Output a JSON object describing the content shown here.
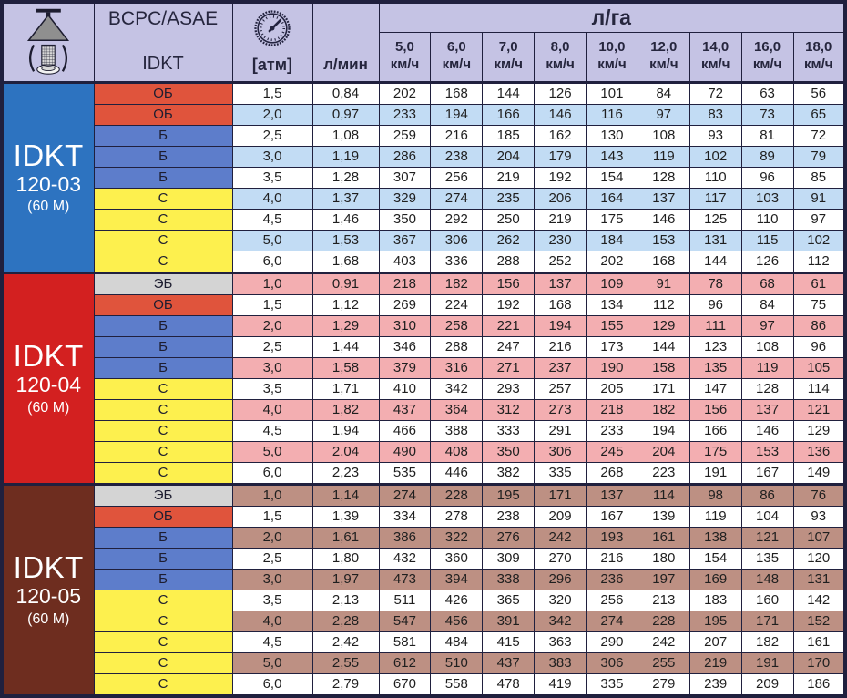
{
  "header": {
    "standard": "BCPC/ASAE",
    "series": "IDKT",
    "pressure_unit": "[атм]",
    "flow_unit": "л/мин",
    "rate_unit": "л/га",
    "speed_unit": "км/ч",
    "speeds": [
      "5,0",
      "6,0",
      "7,0",
      "8,0",
      "10,0",
      "12,0",
      "14,0",
      "16,0",
      "18,0"
    ]
  },
  "colors": {
    "header_bg": "#c5c3e4",
    "grid": "#20203e",
    "text": "#1f1f1f",
    "class_colors": {
      "ЭБ": "#d4d4d4",
      "ОБ": "#e0543c",
      "Б": "#5d7dcb",
      "С": "#fdf04e"
    }
  },
  "sections": [
    {
      "model": "IDKT",
      "code": "120-03",
      "size": "(60 M)",
      "color": "#2d73c0",
      "band": "#c2dcf4",
      "shade_offset": 1,
      "rows": [
        {
          "cls": "ОБ",
          "atm": "1,5",
          "lmin": "0,84",
          "vals": [
            "202",
            "168",
            "144",
            "126",
            "101",
            "84",
            "72",
            "63",
            "56"
          ]
        },
        {
          "cls": "ОБ",
          "atm": "2,0",
          "lmin": "0,97",
          "vals": [
            "233",
            "194",
            "166",
            "146",
            "116",
            "97",
            "83",
            "73",
            "65"
          ]
        },
        {
          "cls": "Б",
          "atm": "2,5",
          "lmin": "1,08",
          "vals": [
            "259",
            "216",
            "185",
            "162",
            "130",
            "108",
            "93",
            "81",
            "72"
          ]
        },
        {
          "cls": "Б",
          "atm": "3,0",
          "lmin": "1,19",
          "vals": [
            "286",
            "238",
            "204",
            "179",
            "143",
            "119",
            "102",
            "89",
            "79"
          ]
        },
        {
          "cls": "Б",
          "atm": "3,5",
          "lmin": "1,28",
          "vals": [
            "307",
            "256",
            "219",
            "192",
            "154",
            "128",
            "110",
            "96",
            "85"
          ]
        },
        {
          "cls": "С",
          "atm": "4,0",
          "lmin": "1,37",
          "vals": [
            "329",
            "274",
            "235",
            "206",
            "164",
            "137",
            "117",
            "103",
            "91"
          ]
        },
        {
          "cls": "С",
          "atm": "4,5",
          "lmin": "1,46",
          "vals": [
            "350",
            "292",
            "250",
            "219",
            "175",
            "146",
            "125",
            "110",
            "97"
          ]
        },
        {
          "cls": "С",
          "atm": "5,0",
          "lmin": "1,53",
          "vals": [
            "367",
            "306",
            "262",
            "230",
            "184",
            "153",
            "131",
            "115",
            "102"
          ]
        },
        {
          "cls": "С",
          "atm": "6,0",
          "lmin": "1,68",
          "vals": [
            "403",
            "336",
            "288",
            "252",
            "202",
            "168",
            "144",
            "126",
            "112"
          ]
        }
      ]
    },
    {
      "model": "IDKT",
      "code": "120-04",
      "size": "(60 M)",
      "color": "#d32020",
      "band": "#f3aeb1",
      "shade_offset": 0,
      "rows": [
        {
          "cls": "ЭБ",
          "atm": "1,0",
          "lmin": "0,91",
          "vals": [
            "218",
            "182",
            "156",
            "137",
            "109",
            "91",
            "78",
            "68",
            "61"
          ]
        },
        {
          "cls": "ОБ",
          "atm": "1,5",
          "lmin": "1,12",
          "vals": [
            "269",
            "224",
            "192",
            "168",
            "134",
            "112",
            "96",
            "84",
            "75"
          ]
        },
        {
          "cls": "Б",
          "atm": "2,0",
          "lmin": "1,29",
          "vals": [
            "310",
            "258",
            "221",
            "194",
            "155",
            "129",
            "111",
            "97",
            "86"
          ]
        },
        {
          "cls": "Б",
          "atm": "2,5",
          "lmin": "1,44",
          "vals": [
            "346",
            "288",
            "247",
            "216",
            "173",
            "144",
            "123",
            "108",
            "96"
          ]
        },
        {
          "cls": "Б",
          "atm": "3,0",
          "lmin": "1,58",
          "vals": [
            "379",
            "316",
            "271",
            "237",
            "190",
            "158",
            "135",
            "119",
            "105"
          ]
        },
        {
          "cls": "С",
          "atm": "3,5",
          "lmin": "1,71",
          "vals": [
            "410",
            "342",
            "293",
            "257",
            "205",
            "171",
            "147",
            "128",
            "114"
          ]
        },
        {
          "cls": "С",
          "atm": "4,0",
          "lmin": "1,82",
          "vals": [
            "437",
            "364",
            "312",
            "273",
            "218",
            "182",
            "156",
            "137",
            "121"
          ]
        },
        {
          "cls": "С",
          "atm": "4,5",
          "lmin": "1,94",
          "vals": [
            "466",
            "388",
            "333",
            "291",
            "233",
            "194",
            "166",
            "146",
            "129"
          ]
        },
        {
          "cls": "С",
          "atm": "5,0",
          "lmin": "2,04",
          "vals": [
            "490",
            "408",
            "350",
            "306",
            "245",
            "204",
            "175",
            "153",
            "136"
          ]
        },
        {
          "cls": "С",
          "atm": "6,0",
          "lmin": "2,23",
          "vals": [
            "535",
            "446",
            "382",
            "335",
            "268",
            "223",
            "191",
            "167",
            "149"
          ]
        }
      ]
    },
    {
      "model": "IDKT",
      "code": "120-05",
      "size": "(60 M)",
      "color": "#6e2d1f",
      "band": "#bd9083",
      "shade_offset": 0,
      "rows": [
        {
          "cls": "ЭБ",
          "atm": "1,0",
          "lmin": "1,14",
          "vals": [
            "274",
            "228",
            "195",
            "171",
            "137",
            "114",
            "98",
            "86",
            "76"
          ]
        },
        {
          "cls": "ОБ",
          "atm": "1,5",
          "lmin": "1,39",
          "vals": [
            "334",
            "278",
            "238",
            "209",
            "167",
            "139",
            "119",
            "104",
            "93"
          ]
        },
        {
          "cls": "Б",
          "atm": "2,0",
          "lmin": "1,61",
          "vals": [
            "386",
            "322",
            "276",
            "242",
            "193",
            "161",
            "138",
            "121",
            "107"
          ]
        },
        {
          "cls": "Б",
          "atm": "2,5",
          "lmin": "1,80",
          "vals": [
            "432",
            "360",
            "309",
            "270",
            "216",
            "180",
            "154",
            "135",
            "120"
          ]
        },
        {
          "cls": "Б",
          "atm": "3,0",
          "lmin": "1,97",
          "vals": [
            "473",
            "394",
            "338",
            "296",
            "236",
            "197",
            "169",
            "148",
            "131"
          ]
        },
        {
          "cls": "С",
          "atm": "3,5",
          "lmin": "2,13",
          "vals": [
            "511",
            "426",
            "365",
            "320",
            "256",
            "213",
            "183",
            "160",
            "142"
          ]
        },
        {
          "cls": "С",
          "atm": "4,0",
          "lmin": "2,28",
          "vals": [
            "547",
            "456",
            "391",
            "342",
            "274",
            "228",
            "195",
            "171",
            "152"
          ]
        },
        {
          "cls": "С",
          "atm": "4,5",
          "lmin": "2,42",
          "vals": [
            "581",
            "484",
            "415",
            "363",
            "290",
            "242",
            "207",
            "182",
            "161"
          ]
        },
        {
          "cls": "С",
          "atm": "5,0",
          "lmin": "2,55",
          "vals": [
            "612",
            "510",
            "437",
            "383",
            "306",
            "255",
            "219",
            "191",
            "170"
          ]
        },
        {
          "cls": "С",
          "atm": "6,0",
          "lmin": "2,79",
          "vals": [
            "670",
            "558",
            "478",
            "419",
            "335",
            "279",
            "239",
            "209",
            "186"
          ]
        }
      ]
    }
  ]
}
